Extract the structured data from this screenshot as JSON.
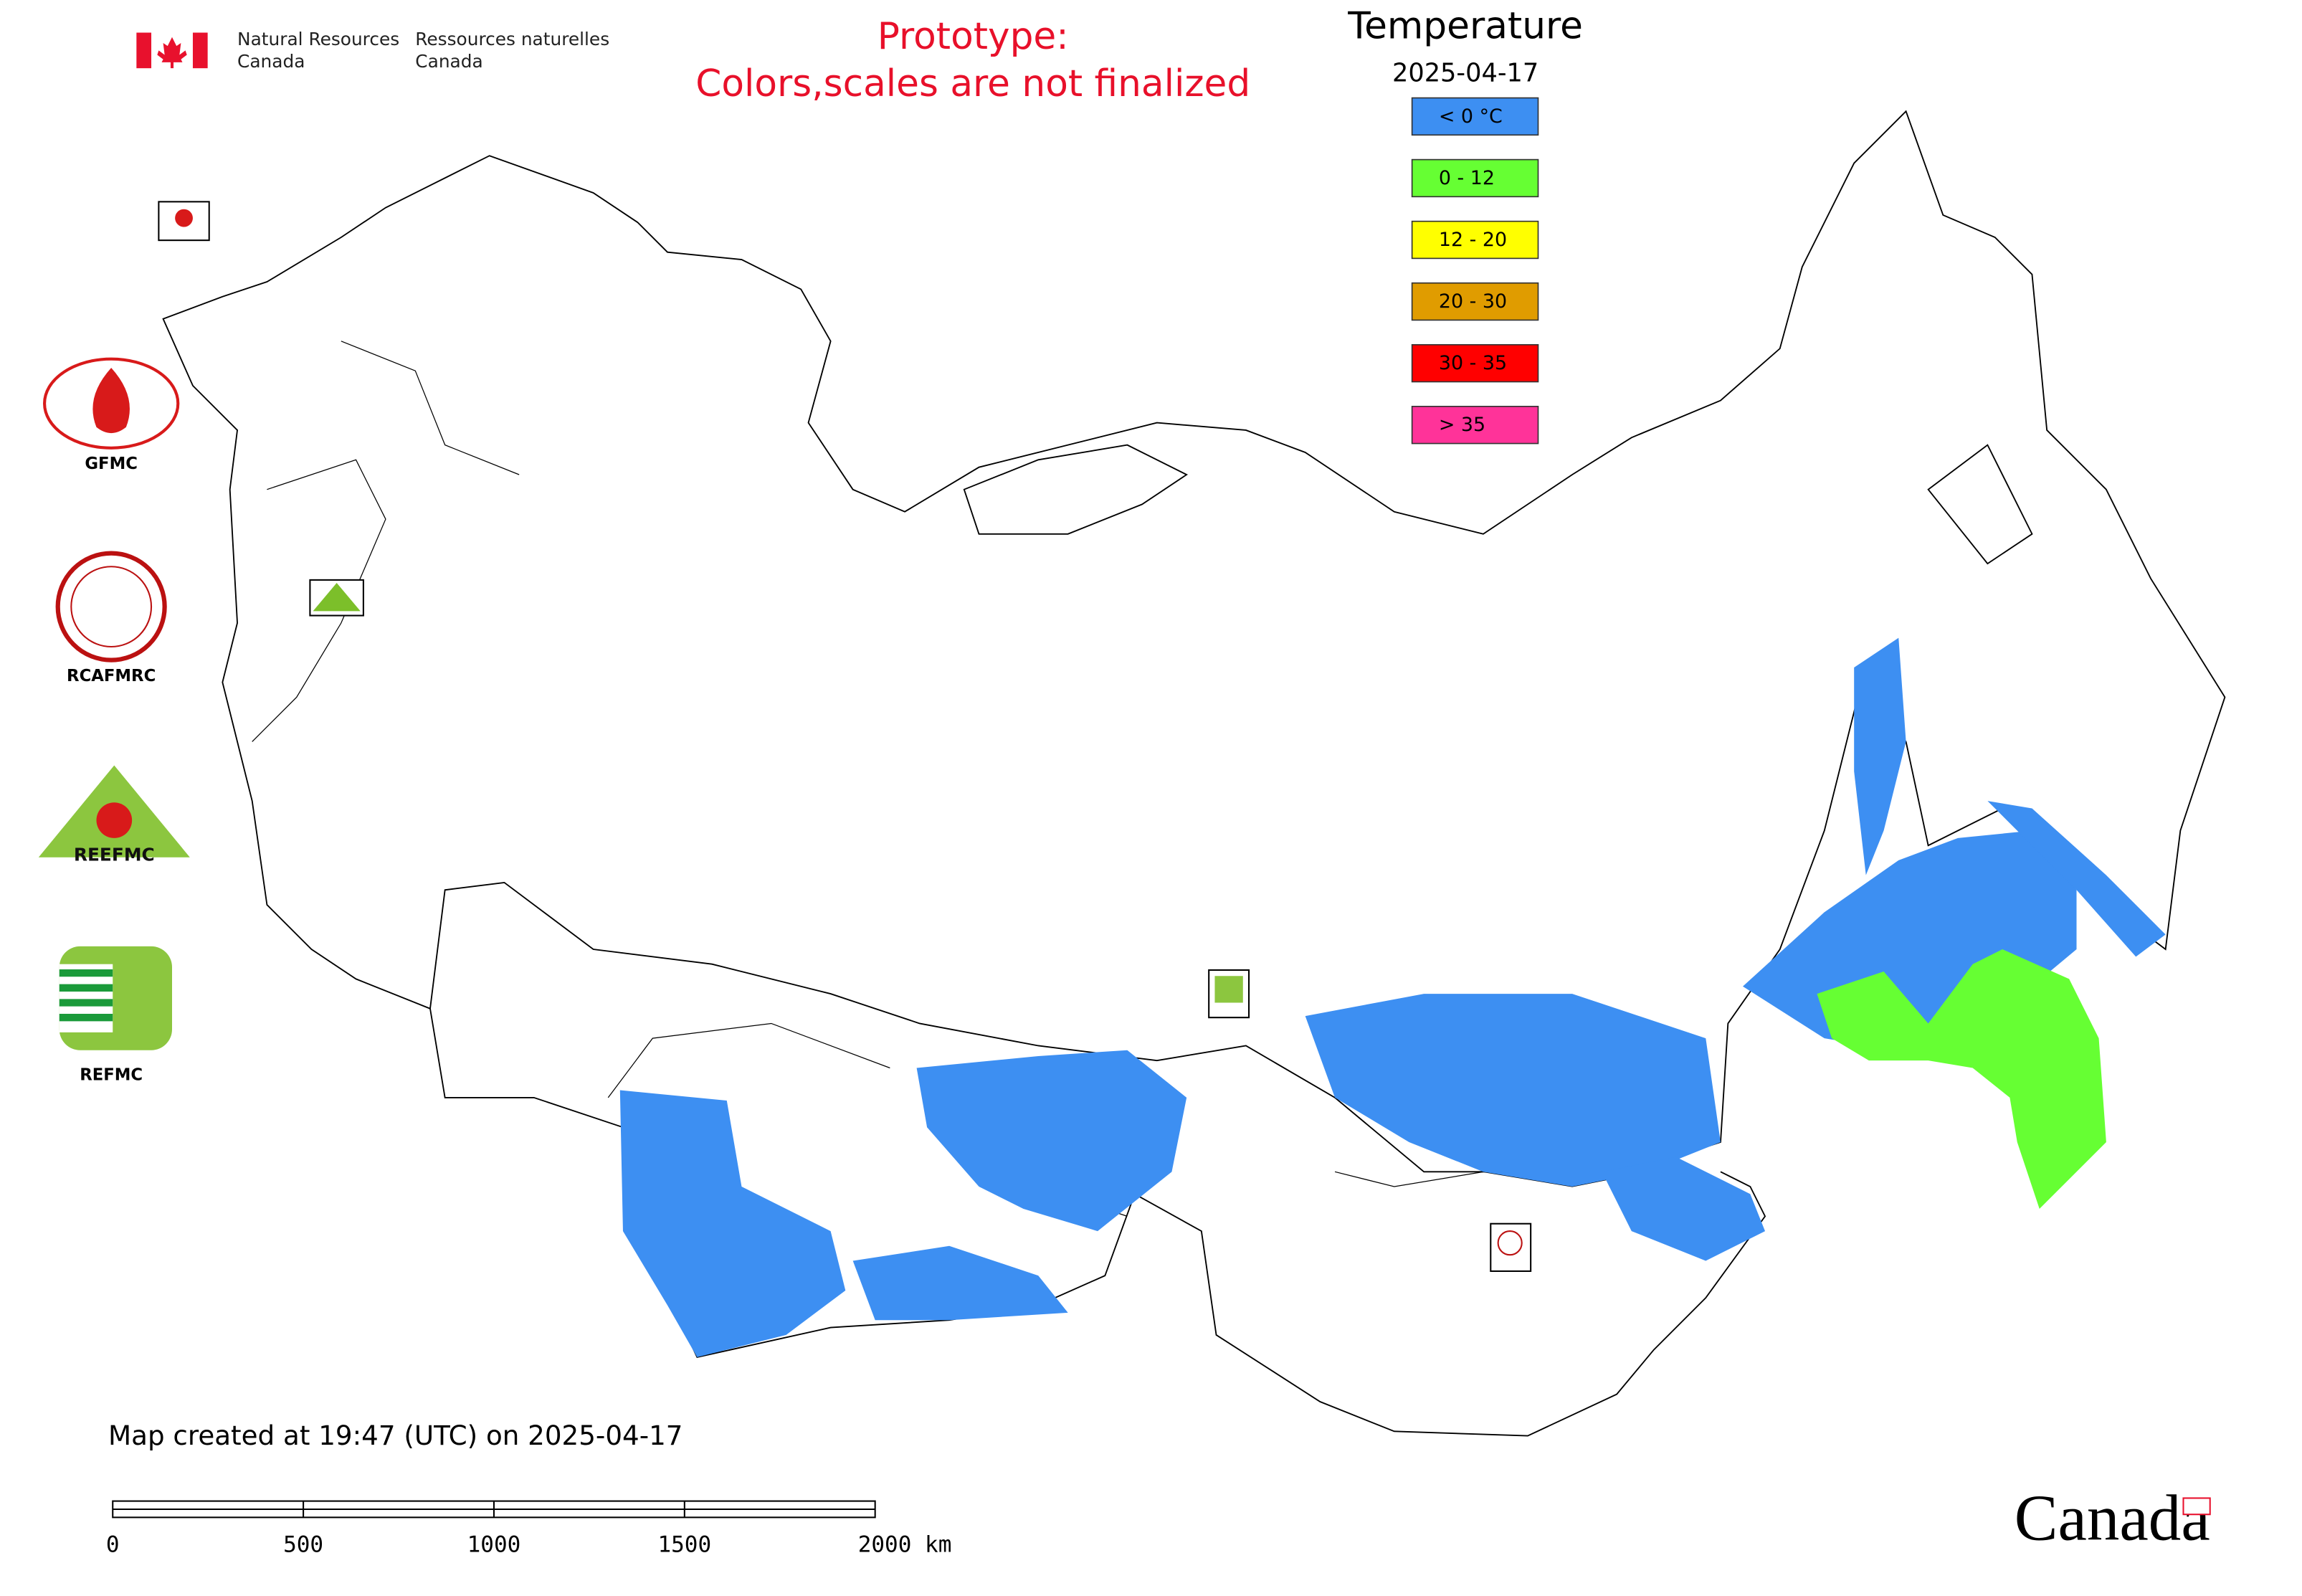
{
  "header": {
    "agency_en": [
      "Natural Resources",
      "Canada"
    ],
    "agency_fr": [
      "Ressources naturelles",
      "Canada"
    ],
    "notice": [
      "Prototype:",
      "Colors,scales are not finalized"
    ]
  },
  "legend": {
    "title": "Temperature",
    "date": "2025-04-17",
    "items": [
      {
        "label": "< 0 °C",
        "color": "#3d8ff2"
      },
      {
        "label": "0 - 12",
        "color": "#66ff33"
      },
      {
        "label": "12 - 20",
        "color": "#ffff00"
      },
      {
        "label": "20 - 30",
        "color": "#e09c00"
      },
      {
        "label": "30 - 35",
        "color": "#ff0000"
      },
      {
        "label": "> 35",
        "color": "#ff3399"
      }
    ]
  },
  "centers": [
    "GFMC",
    "RCAFMRC",
    "REEFMC",
    "REFMC"
  ],
  "footer": {
    "created": "Map created at 19:47 (UTC) on 2025-04-17",
    "scale_labels": [
      "0",
      "500",
      "1000",
      "1500",
      "2000 km"
    ],
    "wordmark": "Canada"
  }
}
